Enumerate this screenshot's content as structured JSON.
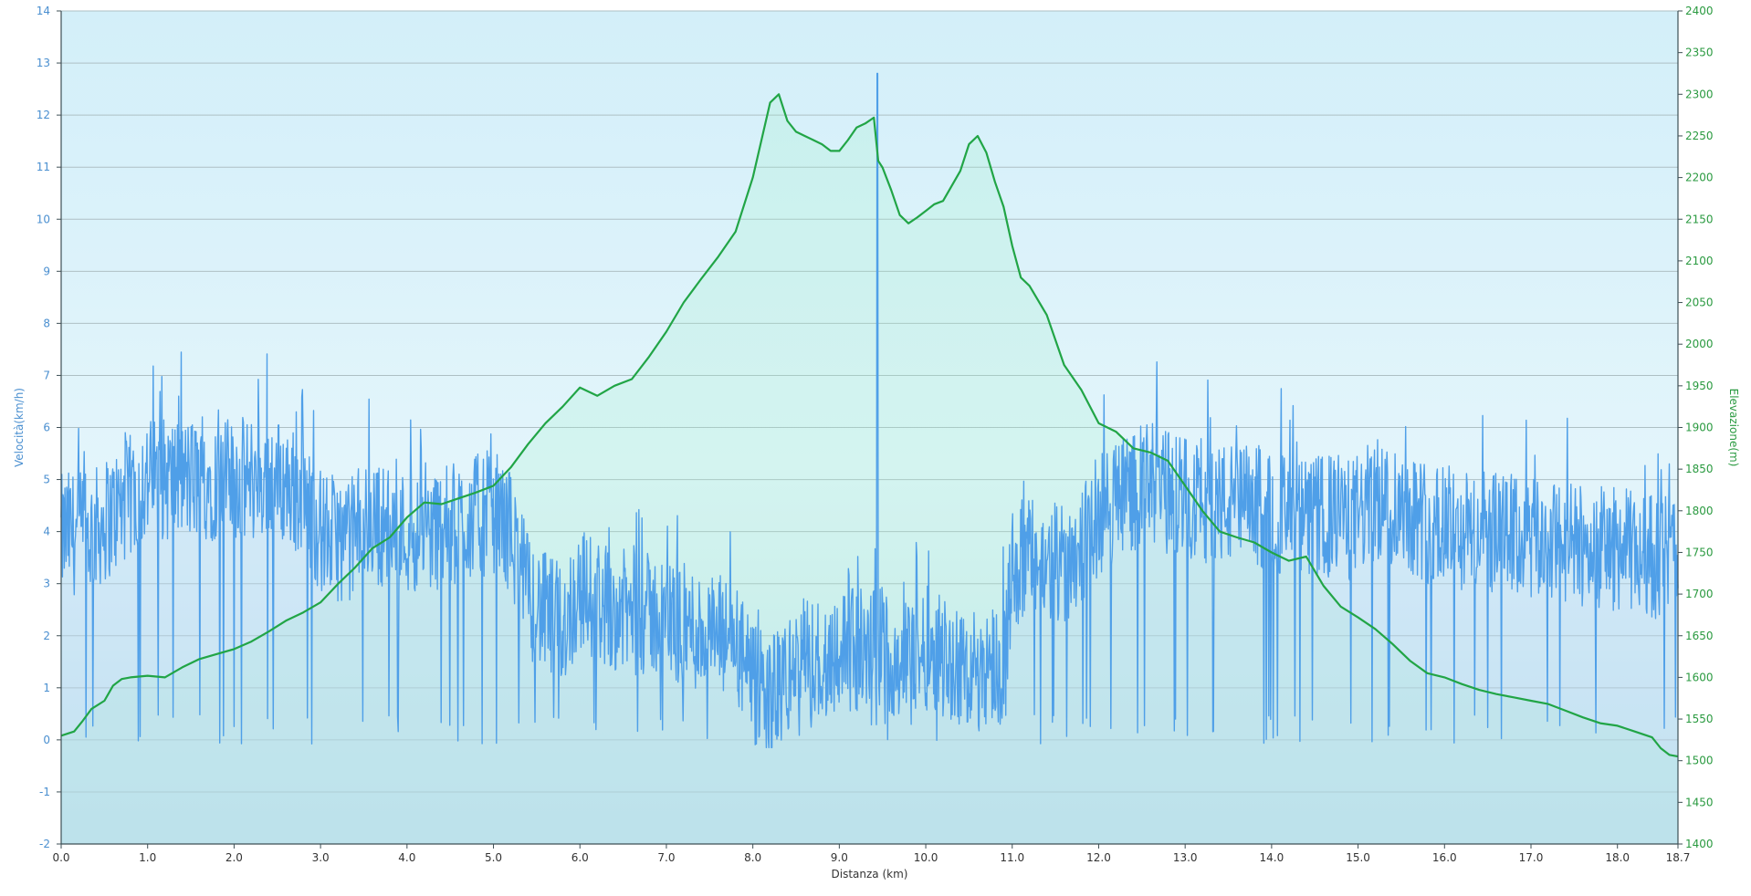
{
  "chart_data": {
    "type": "line",
    "xlabel": "Distanza  (km)",
    "ylabel_left": "Velocità(km/h)",
    "ylabel_right": "Elevazione(m)",
    "x_range": [
      0,
      18.7
    ],
    "ylim_left": [
      -2,
      14
    ],
    "ylim_right": [
      1400,
      2400
    ],
    "x_ticks": [
      "0.0",
      "1.0",
      "2.0",
      "3.0",
      "4.0",
      "5.0",
      "6.0",
      "7.0",
      "8.0",
      "9.0",
      "10.0",
      "11.0",
      "12.0",
      "13.0",
      "14.0",
      "15.0",
      "16.0",
      "17.0",
      "18.0",
      "18.7"
    ],
    "x_tick_values": [
      0,
      1,
      2,
      3,
      4,
      5,
      6,
      7,
      8,
      9,
      10,
      11,
      12,
      13,
      14,
      15,
      16,
      17,
      18,
      18.7
    ],
    "y_ticks_left": [
      -2,
      -1,
      0,
      1,
      2,
      3,
      4,
      5,
      6,
      7,
      8,
      9,
      10,
      11,
      12,
      13,
      14
    ],
    "y_ticks_right": [
      1400,
      1450,
      1500,
      1550,
      1600,
      1650,
      1700,
      1750,
      1800,
      1850,
      1900,
      1950,
      2000,
      2050,
      2100,
      2150,
      2200,
      2250,
      2300,
      2350,
      2400
    ],
    "grid": true,
    "legend": "none",
    "colors": {
      "speed": "#4f9fe8",
      "elevation": "#21a546",
      "left_axis_text": "#4a8fd0",
      "right_axis_text": "#2a9a40",
      "bg_top": "#d3eff9",
      "bg_bottom": "#c9e6ef"
    },
    "series": [
      {
        "axis": "right",
        "x": [
          0,
          0.15,
          0.25,
          0.35,
          0.5,
          0.6,
          0.7,
          0.8,
          1.0,
          1.2,
          1.4,
          1.6,
          1.8,
          2.0,
          2.2,
          2.4,
          2.6,
          2.8,
          3.0,
          3.2,
          3.4,
          3.6,
          3.8,
          4.0,
          4.2,
          4.4,
          4.6,
          4.8,
          5.0,
          5.2,
          5.4,
          5.6,
          5.8,
          6.0,
          6.2,
          6.4,
          6.6,
          6.8,
          7.0,
          7.2,
          7.4,
          7.6,
          7.8,
          8.0,
          8.1,
          8.2,
          8.3,
          8.4,
          8.5,
          8.6,
          8.7,
          8.8,
          8.9,
          9.0,
          9.1,
          9.2,
          9.3,
          9.4,
          9.45,
          9.5,
          9.6,
          9.7,
          9.8,
          9.9,
          10.0,
          10.1,
          10.2,
          10.3,
          10.4,
          10.5,
          10.6,
          10.7,
          10.8,
          10.9,
          11.0,
          11.1,
          11.2,
          11.4,
          11.6,
          11.8,
          12.0,
          12.2,
          12.4,
          12.6,
          12.8,
          13.0,
          13.2,
          13.4,
          13.6,
          13.8,
          14.0,
          14.2,
          14.4,
          14.6,
          14.8,
          15.0,
          15.2,
          15.4,
          15.6,
          15.8,
          16.0,
          16.2,
          16.4,
          16.6,
          16.8,
          17.0,
          17.2,
          17.4,
          17.6,
          17.8,
          18.0,
          18.2,
          18.4,
          18.5,
          18.6,
          18.7
        ],
        "y": [
          1530,
          1535,
          1548,
          1562,
          1572,
          1590,
          1598,
          1600,
          1602,
          1600,
          1612,
          1622,
          1628,
          1634,
          1643,
          1655,
          1668,
          1678,
          1690,
          1712,
          1732,
          1755,
          1768,
          1792,
          1810,
          1808,
          1815,
          1822,
          1830,
          1852,
          1880,
          1905,
          1925,
          1948,
          1938,
          1950,
          1958,
          1985,
          2015,
          2050,
          2078,
          2105,
          2135,
          2200,
          2245,
          2290,
          2300,
          2268,
          2255,
          2250,
          2245,
          2240,
          2232,
          2232,
          2245,
          2260,
          2265,
          2272,
          2220,
          2212,
          2185,
          2155,
          2145,
          2152,
          2160,
          2168,
          2172,
          2190,
          2208,
          2240,
          2250,
          2230,
          2195,
          2165,
          2118,
          2080,
          2070,
          2035,
          1975,
          1945,
          1905,
          1895,
          1875,
          1870,
          1860,
          1830,
          1800,
          1775,
          1768,
          1762,
          1750,
          1740,
          1745,
          1710,
          1685,
          1672,
          1658,
          1640,
          1620,
          1605,
          1600,
          1592,
          1585,
          1580,
          1576,
          1572,
          1568,
          1560,
          1552,
          1545,
          1542,
          1535,
          1528,
          1515,
          1507,
          1505
        ]
      },
      {
        "axis": "left",
        "noisy": true,
        "x": [
          0,
          0.1,
          0.3,
          0.5,
          0.7,
          1.0,
          1.5,
          2.0,
          2.5,
          2.8,
          3.0,
          3.3,
          3.6,
          3.9,
          4.2,
          4.5,
          4.8,
          5.0,
          5.2,
          5.4,
          5.6,
          5.8,
          6.0,
          6.3,
          6.6,
          6.9,
          7.2,
          7.5,
          7.8,
          8.0,
          8.2,
          8.4,
          8.6,
          8.8,
          9.0,
          9.2,
          9.44,
          9.5,
          9.7,
          9.9,
          10.1,
          10.3,
          10.5,
          10.7,
          10.9,
          11.0,
          11.2,
          11.4,
          11.6,
          11.8,
          12.0,
          12.3,
          12.6,
          12.9,
          13.2,
          13.5,
          13.8,
          14.0,
          14.3,
          14.6,
          14.9,
          15.2,
          15.5,
          15.8,
          16.1,
          16.4,
          16.7,
          17.0,
          17.3,
          17.6,
          17.9,
          18.2,
          18.5,
          18.7
        ],
        "y": [
          3.9,
          4.0,
          3.9,
          4.2,
          4.5,
          5.0,
          5.0,
          5.0,
          5.0,
          4.7,
          4.0,
          3.8,
          4.2,
          4.0,
          4.0,
          4.1,
          4.3,
          4.4,
          4.0,
          2.8,
          2.4,
          2.2,
          2.9,
          2.6,
          2.4,
          2.4,
          2.2,
          2.0,
          1.9,
          1.0,
          0.8,
          1.2,
          1.6,
          1.5,
          1.8,
          1.7,
          12.8,
          1.8,
          1.5,
          1.7,
          1.8,
          1.5,
          1.3,
          1.5,
          1.4,
          3.3,
          3.5,
          3.3,
          3.4,
          3.8,
          4.3,
          4.8,
          4.9,
          4.7,
          4.6,
          4.5,
          4.5,
          4.4,
          4.2,
          4.3,
          4.2,
          4.6,
          4.5,
          4.2,
          4.0,
          4.0,
          3.9,
          3.8,
          3.8,
          3.7,
          3.7,
          3.6,
          3.5,
          3.6
        ]
      }
    ]
  }
}
